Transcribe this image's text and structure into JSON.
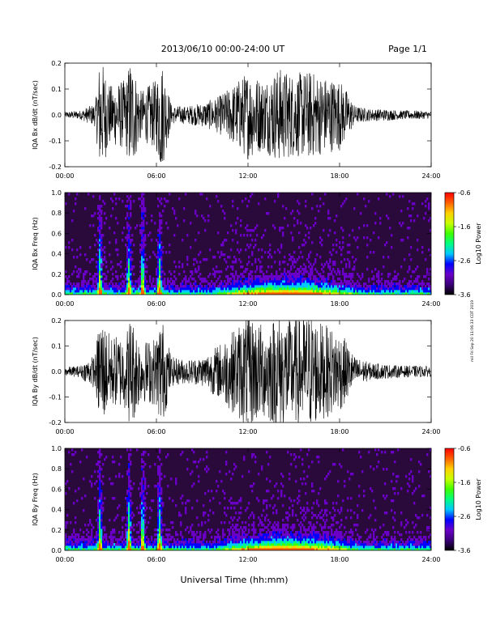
{
  "header": {
    "title": "2013/06/10  00:00-24:00 UT",
    "page": "Page 1/1"
  },
  "footer": {
    "xlabel": "Universal Time (hh:mm)"
  },
  "side_note": "mil Fri Sep 20 11:06:33 CDT 2019",
  "colors": {
    "trace": "#000000",
    "spectrogram_background": "#2a0a3a",
    "colorbar": [
      "#000000",
      "#3b007a",
      "#6a00c8",
      "#0000ff",
      "#00c8ff",
      "#00ff80",
      "#40ff00",
      "#c8ff00",
      "#ffd000",
      "#ff6000",
      "#ff0000"
    ]
  },
  "chart_data": [
    {
      "type": "line",
      "ylabel": "IQA Bx dB/dt (nT/sec)",
      "ylim": [
        -0.2,
        0.2
      ],
      "yticks": [
        "0.2",
        "0.1",
        "0.0",
        "-0.1",
        "-0.2"
      ],
      "xlim": [
        0,
        24
      ],
      "xticks": [
        "00:00",
        "06:00",
        "12:00",
        "18:00",
        "24:00"
      ],
      "x_unit": "hours UT",
      "envelope": {
        "x": [
          0,
          1,
          2,
          2.3,
          3,
          4,
          4.3,
          5,
          6,
          6.3,
          7,
          8,
          9,
          10,
          11,
          12,
          13,
          14,
          15,
          16,
          17,
          18,
          18.5,
          19,
          20,
          21,
          22,
          23,
          24
        ],
        "amplitude": [
          0.01,
          0.015,
          0.04,
          0.2,
          0.1,
          0.12,
          0.2,
          0.08,
          0.12,
          0.2,
          0.03,
          0.03,
          0.04,
          0.06,
          0.1,
          0.15,
          0.12,
          0.16,
          0.14,
          0.15,
          0.13,
          0.12,
          0.08,
          0.03,
          0.02,
          0.02,
          0.015,
          0.015,
          0.012
        ]
      }
    },
    {
      "type": "heatmap",
      "ylabel": "IQA Bx Freq (Hz)",
      "ylim": [
        0.0,
        1.0
      ],
      "yticks": [
        "1.0",
        "0.8",
        "0.6",
        "0.4",
        "0.2",
        "0.0"
      ],
      "xlim": [
        0,
        24
      ],
      "xticks": [
        "00:00",
        "06:00",
        "12:00",
        "18:00",
        "24:00"
      ],
      "colorbar": {
        "label": "Log10 Power",
        "range": [
          -3.6,
          -0.6
        ],
        "ticks": [
          "-0.6",
          "-1.6",
          "-2.6",
          "-3.6"
        ]
      },
      "bursts_hours": [
        2.3,
        4.2,
        5.1,
        6.2
      ],
      "enhanced_interval_hours": [
        9.5,
        19.5
      ]
    },
    {
      "type": "line",
      "ylabel": "IQA By dB/dt (nT/sec)",
      "ylim": [
        -0.2,
        0.2
      ],
      "yticks": [
        "0.2",
        "0.1",
        "0.0",
        "-0.1",
        "-0.2"
      ],
      "xlim": [
        0,
        24
      ],
      "xticks": [
        "00:00",
        "06:00",
        "12:00",
        "18:00",
        "24:00"
      ],
      "x_unit": "hours UT",
      "envelope": {
        "x": [
          0,
          1,
          2,
          2.3,
          3,
          4,
          4.3,
          5,
          6,
          6.3,
          7,
          8,
          9,
          10,
          11,
          12,
          13,
          14,
          15,
          16,
          17,
          18,
          18.5,
          19,
          20,
          21,
          22,
          23,
          24
        ],
        "amplitude": [
          0.015,
          0.02,
          0.06,
          0.2,
          0.12,
          0.13,
          0.2,
          0.1,
          0.12,
          0.2,
          0.05,
          0.04,
          0.05,
          0.09,
          0.14,
          0.2,
          0.16,
          0.2,
          0.18,
          0.2,
          0.16,
          0.14,
          0.1,
          0.05,
          0.03,
          0.025,
          0.02,
          0.02,
          0.018
        ]
      }
    },
    {
      "type": "heatmap",
      "ylabel": "IQA By Freq (Hz)",
      "ylim": [
        0.0,
        1.0
      ],
      "yticks": [
        "1.0",
        "0.8",
        "0.6",
        "0.4",
        "0.2",
        "0.0"
      ],
      "xlim": [
        0,
        24
      ],
      "xticks": [
        "00:00",
        "06:00",
        "12:00",
        "18:00",
        "24:00"
      ],
      "colorbar": {
        "label": "Log10 Power",
        "range": [
          -3.6,
          -0.6
        ],
        "ticks": [
          "-0.6",
          "-1.6",
          "-2.6",
          "-3.6"
        ]
      },
      "bursts_hours": [
        2.3,
        4.2,
        5.1,
        6.2
      ],
      "enhanced_interval_hours": [
        9.5,
        19.5
      ]
    }
  ]
}
